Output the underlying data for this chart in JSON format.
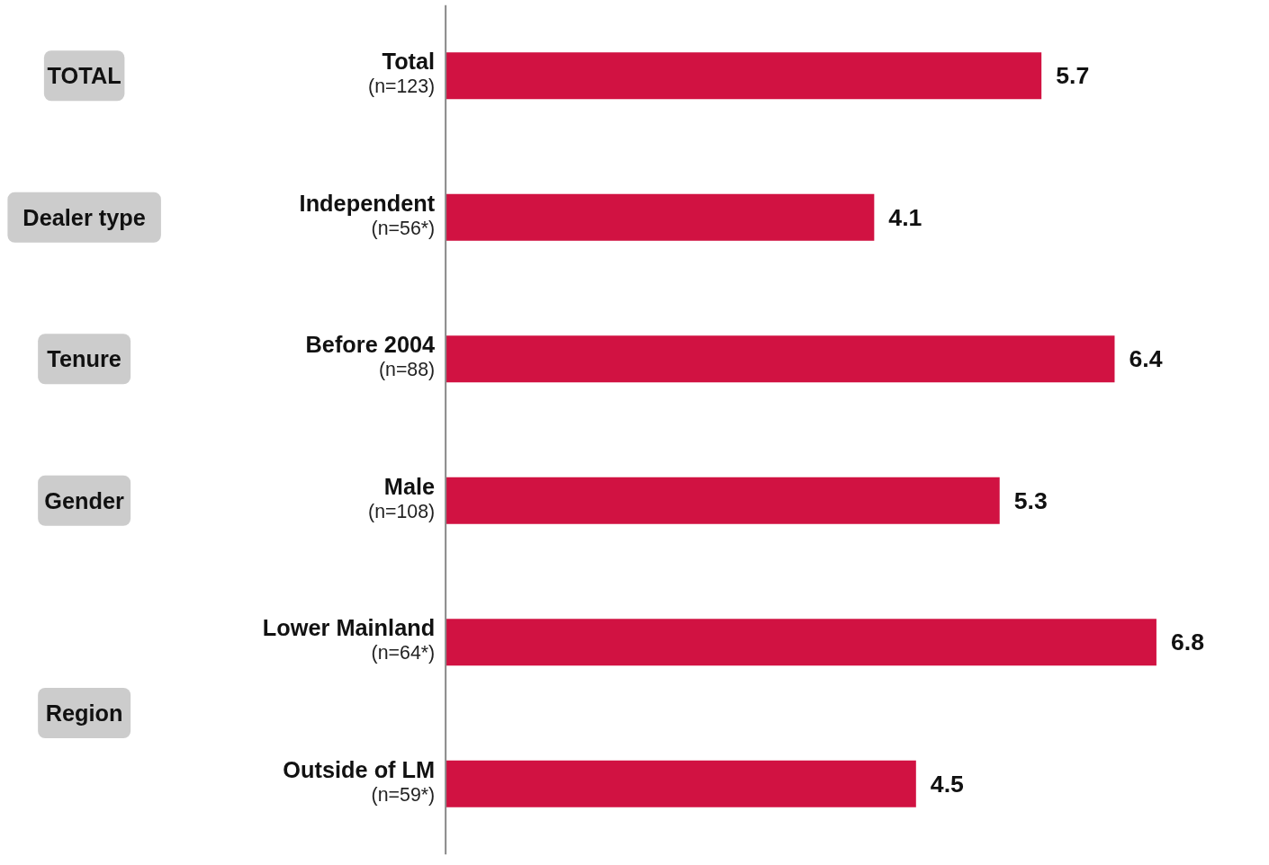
{
  "chart_data": {
    "type": "bar",
    "orientation": "horizontal",
    "categories": [
      "Total\n(n=123)",
      "Independent\n(n=56*)",
      "Before 2004\n(n=88)",
      "Male\n(n=108)",
      "Lower Mainland\n(n=64*)",
      "Outside of LM\n(n=59*)"
    ],
    "values": [
      5.7,
      4.1,
      6.4,
      5.3,
      6.8,
      4.5
    ],
    "color": "#d11242",
    "data_labels": true,
    "annotations": [
      "TOTAL",
      "Dealer type",
      "Tenure",
      "Gender",
      "Region"
    ]
  }
}
